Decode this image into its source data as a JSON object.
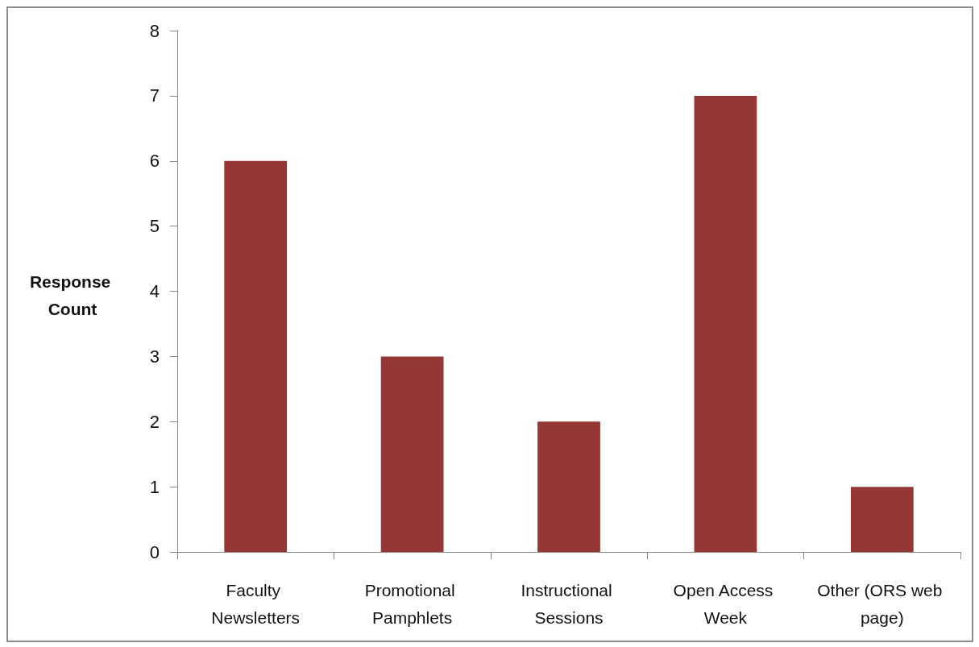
{
  "chart_data": {
    "type": "bar",
    "ylabel": "Response Count",
    "categories": [
      "Faculty Newsletters",
      "Promotional Pamphlets",
      "Instructional Sessions",
      "Open Access Week",
      "Other (ORS web page)"
    ],
    "values": [
      6,
      3,
      2,
      7,
      1
    ],
    "color": "#953735",
    "ylim": [
      0,
      8
    ],
    "yticks": [
      0,
      1,
      2,
      3,
      4,
      5,
      6,
      7,
      8
    ]
  }
}
